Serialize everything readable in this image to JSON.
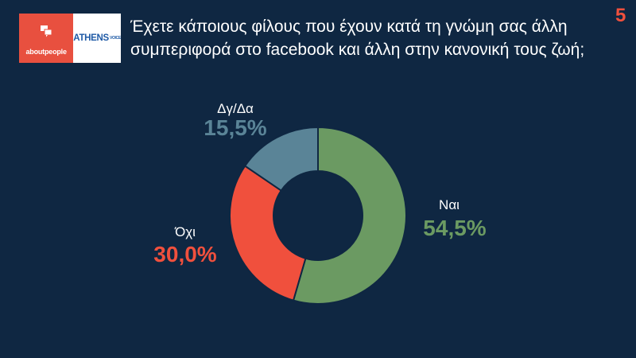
{
  "header": {
    "logo_left_text": "aboutpeople",
    "logo_right_text": "ATHENS",
    "logo_right_sup": "VOICE",
    "question": "Έχετε κάποιους φίλους που έχουν κατά τη γνώμη σας άλλη συμπεριφορά στο facebook και άλλη στην κανονική τους ζωή;",
    "page_number": "5"
  },
  "colors": {
    "background": "#0f2742",
    "yes": "#6b9a62",
    "no": "#f0503d",
    "dk": "#5a8497"
  },
  "chart_data": {
    "type": "pie",
    "donut": true,
    "title": "",
    "categories": [
      "Ναι",
      "Όχι",
      "Δγ/Δα"
    ],
    "values": [
      54.5,
      30.0,
      15.5
    ],
    "value_labels": [
      "54,5%",
      "30,0%",
      "15,5%"
    ],
    "colors": [
      "#6b9a62",
      "#f0503d",
      "#5a8497"
    ],
    "start": "top, clockwise"
  }
}
